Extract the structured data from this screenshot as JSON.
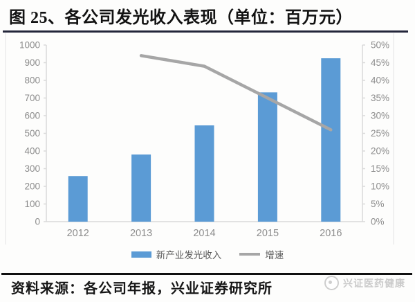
{
  "header": {
    "title": "图 25、各公司发光收入表现（单位：百万元）"
  },
  "colors": {
    "bar": "#5b9bd5",
    "line": "#a6a6a6",
    "title_rule": "#23263a",
    "footer_rule": "#101010",
    "axis_line": "#d9d9d9",
    "axis_text": "#8c8c8c",
    "frame_line": "#ececec"
  },
  "chart_data": {
    "type": "bar",
    "subtype": "bar+line combo, dual axis",
    "title": "图 25、各公司发光收入表现（单位：百万元）",
    "categories": [
      "2012",
      "2013",
      "2014",
      "2015",
      "2016"
    ],
    "series": [
      {
        "name": "新产业发光收入",
        "type": "bar",
        "axis": "left",
        "color": "#5b9bd5",
        "values": [
          258,
          380,
          545,
          732,
          925
        ]
      },
      {
        "name": "增速",
        "type": "line",
        "axis": "right",
        "color": "#a6a6a6",
        "unit": "%",
        "values": [
          null,
          47,
          44,
          35,
          26
        ]
      }
    ],
    "left_axis": {
      "min": 0,
      "max": 1000,
      "step": 100,
      "ticks": [
        "0",
        "100",
        "200",
        "300",
        "400",
        "500",
        "600",
        "700",
        "800",
        "900",
        "1000"
      ]
    },
    "right_axis": {
      "min": 0,
      "max": 50,
      "step": 5,
      "ticks": [
        "0%",
        "5%",
        "10%",
        "15%",
        "20%",
        "25%",
        "30%",
        "35%",
        "40%",
        "45%",
        "50%"
      ]
    },
    "grid": "off",
    "legend_position": "bottom-center"
  },
  "legend": {
    "bar_label": "新产业发光收入",
    "line_label": "增速"
  },
  "footer": {
    "source_label": "资料来源：各公司年报，兴业证券研究所"
  },
  "watermark": {
    "text": "兴证医药健康"
  }
}
